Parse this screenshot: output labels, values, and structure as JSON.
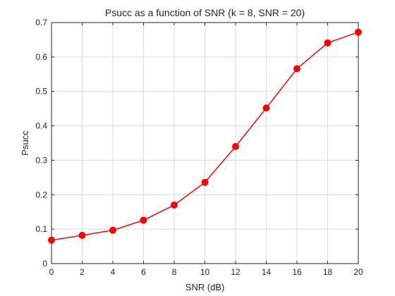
{
  "chart_data": {
    "type": "line",
    "title": "Psucc as a function of SNR (k = 8, SNR = 20)",
    "xlabel": "SNR (dB)",
    "ylabel": "Psucc",
    "xlim": [
      0,
      20
    ],
    "ylim": [
      0,
      0.7
    ],
    "xticks": [
      "0",
      "2",
      "4",
      "6",
      "8",
      "10",
      "12",
      "14",
      "16",
      "18",
      "20"
    ],
    "yticks": [
      "0",
      "0.1",
      "0.2",
      "0.3",
      "0.4",
      "0.5",
      "0.6",
      "0.7"
    ],
    "grid": true,
    "series": [
      {
        "color": "#ff0000",
        "marker": "circle",
        "x": [
          0,
          2,
          4,
          6,
          8,
          10,
          12,
          14,
          16,
          18,
          20
        ],
        "y": [
          0.068,
          0.082,
          0.097,
          0.126,
          0.17,
          0.236,
          0.34,
          0.452,
          0.566,
          0.641,
          0.672
        ]
      }
    ]
  }
}
